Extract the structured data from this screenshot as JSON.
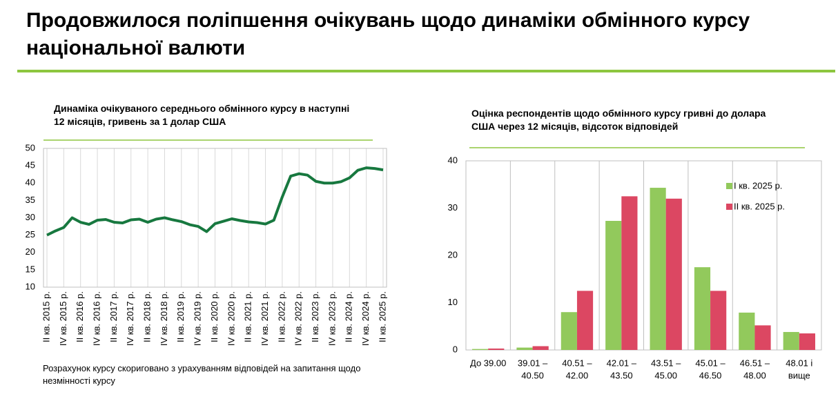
{
  "header": {
    "title": "Продовжилося поліпшення очікувань щодо динаміки обмінного курсу національної валюти"
  },
  "chart_data": [
    {
      "type": "line",
      "title": "Динаміка очікуваного середнього обмінного курсу в наступні 12 місяців, гривень за 1 долар США",
      "note": "Розрахунок курсу скориговано з урахуванням відповідей на запитання щодо незмінності курсу",
      "categories": [
        "II кв. 2015 р.",
        null,
        "IV кв. 2015 р.",
        null,
        "II кв. 2016 р.",
        null,
        "IV кв. 2016 р.",
        null,
        "II кв. 2017 р.",
        null,
        "IV кв. 2017 р.",
        null,
        "II кв. 2018 р.",
        null,
        "IV кв. 2018 р.",
        null,
        "II кв. 2019 р.",
        null,
        "IV кв. 2019 р.",
        null,
        "II кв. 2020 р.",
        null,
        "IV кв. 2020 р.",
        null,
        "II кв. 2021 р.",
        null,
        "IV кв. 2021 р.",
        null,
        "II кв. 2022 р.",
        null,
        "IV кв. 2022 р.",
        null,
        "II кв. 2023 р.",
        null,
        "IV кв. 2023 р.",
        null,
        "II кв. 2024 р.",
        null,
        "IV кв. 2024 р.",
        null,
        "II кв. 2025 р."
      ],
      "values": [
        25,
        26.2,
        27.2,
        30,
        28.7,
        28.1,
        29.3,
        29.5,
        28.7,
        28.5,
        29.4,
        29.6,
        28.7,
        29.6,
        30,
        29.4,
        28.9,
        28,
        27.5,
        26,
        28.3,
        29,
        29.7,
        29.2,
        28.8,
        28.6,
        28.2,
        29.3,
        36,
        42,
        42.7,
        42.3,
        40.5,
        40,
        40,
        40.4,
        41.5,
        43.7,
        44.4,
        44.2,
        43.8
      ],
      "color": "#17783f",
      "ylim": [
        10,
        50
      ],
      "yticks": [
        10,
        15,
        20,
        25,
        30,
        35,
        40,
        45,
        50
      ]
    },
    {
      "type": "bar",
      "title": "Оцінка респондентів щодо обмінного курсу гривні до долара США через 12 місяців, відсоток відповідей",
      "categories": [
        [
          "До 39.00"
        ],
        [
          "39.01 –",
          "40.50"
        ],
        [
          "40.51 –",
          "42.00"
        ],
        [
          "42.01 –",
          "43.50"
        ],
        [
          "43.51 –",
          "45.00"
        ],
        [
          "45.01 –",
          "46.50"
        ],
        [
          "46.51 –",
          "48.00"
        ],
        [
          "48.01 і",
          "вище"
        ]
      ],
      "series": [
        {
          "name": "І кв. 2025 р.",
          "color": "#92c95c",
          "values": [
            0.2,
            0.5,
            8,
            27.3,
            34.3,
            17.5,
            7.9,
            3.8
          ]
        },
        {
          "name": "ІІ кв. 2025 р.",
          "color": "#dc4762",
          "values": [
            0.3,
            0.8,
            12.5,
            32.5,
            32,
            12.5,
            5.2,
            3.5
          ]
        }
      ],
      "ylim": [
        0,
        40
      ],
      "yticks": [
        0,
        10,
        20,
        30,
        40
      ],
      "legend": "top-right"
    }
  ]
}
